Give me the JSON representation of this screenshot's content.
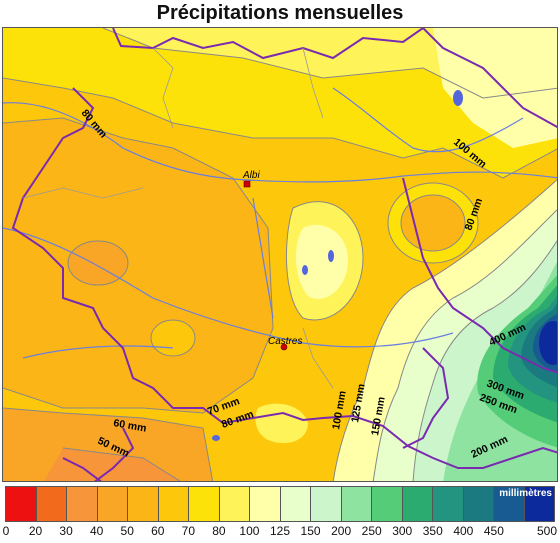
{
  "title": "Précipitations mensuelles",
  "cities": [
    {
      "name": "Albi"
    },
    {
      "name": "Castres"
    }
  ],
  "isolines": [
    "80 mm",
    "100 mm",
    "80 mm",
    "400 mm",
    "300 mm",
    "250 mm",
    "200 mm",
    "150 mm",
    "125 mm",
    "100 mm",
    "70 mm",
    "80 mm",
    "60 mm",
    "50 mm"
  ],
  "legend": {
    "unit": "millimètres",
    "ticks": [
      "0",
      "20",
      "30",
      "40",
      "50",
      "60",
      "70",
      "80",
      "100",
      "125",
      "150",
      "200",
      "250",
      "300",
      "350",
      "400",
      "450",
      "500"
    ],
    "colors": [
      "#ee1111",
      "#f26a1b",
      "#f7953a",
      "#f9a526",
      "#fbb516",
      "#fdc70c",
      "#fde20a",
      "#fff35a",
      "#ffffaa",
      "#e8ffcc",
      "#ccf5cc",
      "#8ee3a0",
      "#55cc77",
      "#2bab6f",
      "#229480",
      "#1a7a80",
      "#185a92",
      "#0d2a9c"
    ]
  }
}
